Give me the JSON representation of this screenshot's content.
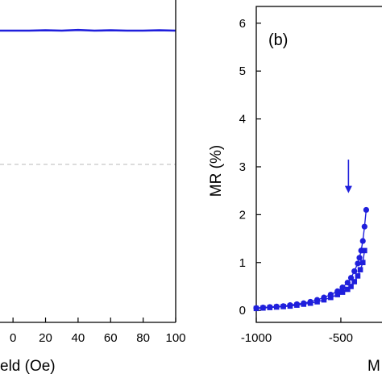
{
  "colors": {
    "series": "#1f1fdc",
    "axis": "#000000",
    "dash": "#b8b8b8"
  },
  "chart_data": [
    {
      "type": "line",
      "xlabel": "eld (Oe)",
      "xlim": [
        -8,
        100
      ],
      "ylim": [
        0,
        1
      ],
      "xticks": [
        {
          "v": 0,
          "label": "0"
        },
        {
          "v": 20,
          "label": "20"
        },
        {
          "v": 40,
          "label": "40"
        },
        {
          "v": 60,
          "label": "60"
        },
        {
          "v": 80,
          "label": "80"
        },
        {
          "v": 100,
          "label": "100"
        }
      ],
      "series": [
        {
          "x": [
            -8,
            0,
            10,
            20,
            30,
            40,
            50,
            60,
            70,
            80,
            90,
            100
          ],
          "y": [
            0.905,
            0.905,
            0.905,
            0.906,
            0.905,
            0.907,
            0.905,
            0.906,
            0.905,
            0.905,
            0.906,
            0.905
          ]
        }
      ],
      "reference_line": {
        "y": 0.49,
        "style": "dashed"
      }
    },
    {
      "type": "scatter",
      "panel_label": "(b)",
      "xlabel": "M",
      "ylabel": "MR (%)",
      "xlim": [
        -1000,
        -190
      ],
      "ylim": [
        -0.25,
        6.35
      ],
      "xticks": [
        {
          "v": -1000,
          "label": "-1000"
        },
        {
          "v": -500,
          "label": "-500"
        }
      ],
      "yticks": [
        0,
        1,
        2,
        3,
        4,
        5,
        6
      ],
      "series": [
        {
          "marker": "circle",
          "x": [
            -1000,
            -960,
            -920,
            -880,
            -840,
            -800,
            -760,
            -720,
            -680,
            -640,
            -600,
            -560,
            -520,
            -490,
            -460,
            -440,
            -420,
            -400,
            -390,
            -380,
            -370,
            -360,
            -350
          ],
          "y": [
            0.05,
            0.06,
            0.07,
            0.08,
            0.09,
            0.11,
            0.13,
            0.15,
            0.18,
            0.22,
            0.27,
            0.33,
            0.4,
            0.48,
            0.58,
            0.68,
            0.82,
            0.98,
            1.1,
            1.25,
            1.45,
            1.75,
            2.1
          ]
        },
        {
          "marker": "square",
          "x": [
            -1000,
            -960,
            -920,
            -880,
            -840,
            -800,
            -760,
            -720,
            -680,
            -640,
            -600,
            -560,
            -520,
            -490,
            -460,
            -440,
            -420,
            -400,
            -385,
            -370,
            -360
          ],
          "y": [
            0.04,
            0.05,
            0.06,
            0.07,
            0.08,
            0.09,
            0.11,
            0.13,
            0.15,
            0.18,
            0.22,
            0.27,
            0.33,
            0.38,
            0.44,
            0.5,
            0.6,
            0.72,
            0.85,
            1.0,
            1.25
          ]
        }
      ],
      "annotation": {
        "type": "arrow-down",
        "x": -455,
        "y_from": 3.15,
        "y_to": 2.45
      }
    }
  ]
}
